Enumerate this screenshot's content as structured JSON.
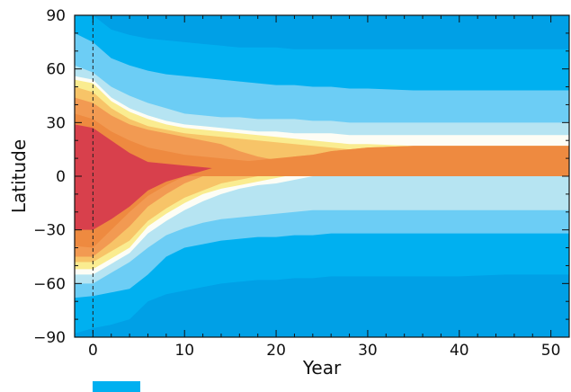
{
  "chart_data": {
    "type": "heatmap",
    "subtype": "filled-contour",
    "xlabel": "Year",
    "ylabel": "Latitude",
    "xlim": [
      -2,
      52
    ],
    "ylim": [
      -90,
      90
    ],
    "xticks": [
      0,
      10,
      20,
      30,
      40,
      50
    ],
    "xtick_labels": [
      "0",
      "10",
      "20",
      "30",
      "40",
      "50"
    ],
    "yticks": [
      90,
      60,
      30,
      0,
      -30,
      -60,
      -90
    ],
    "ytick_labels": [
      "90",
      "60",
      "30",
      "0",
      "−30",
      "−60",
      "−90"
    ],
    "reference_line": {
      "x": 0,
      "style": "dashed"
    },
    "grid": false,
    "colorbar_visible_swatch": "#00b0f0",
    "contour_levels": [
      {
        "name": "level-1",
        "color": "#00a0e6"
      },
      {
        "name": "level-2",
        "color": "#00b0f0"
      },
      {
        "name": "level-3",
        "color": "#6ccdf5"
      },
      {
        "name": "level-4",
        "color": "#b6e4f2"
      },
      {
        "name": "level-5",
        "color": "#fdfdf5"
      },
      {
        "name": "level-6",
        "color": "#faec90"
      },
      {
        "name": "level-7",
        "color": "#f7c468"
      },
      {
        "name": "level-8",
        "color": "#f29a52"
      },
      {
        "name": "level-9",
        "color": "#ee8a40"
      },
      {
        "name": "level-10",
        "color": "#d8404c"
      }
    ],
    "boundaries_north": {
      "x": [
        -2,
        0,
        2,
        4,
        6,
        8,
        10,
        12,
        14,
        16,
        18,
        20,
        22,
        24,
        26,
        28,
        30,
        35,
        40,
        45,
        50,
        52
      ],
      "b1": [
        90,
        90,
        90,
        90,
        90,
        90,
        90,
        90,
        90,
        90,
        90,
        90,
        90,
        90,
        90,
        90,
        90,
        90,
        90,
        90,
        90,
        90
      ],
      "b2": [
        90,
        90,
        82,
        79,
        77,
        76,
        75,
        74,
        73,
        72,
        72,
        72,
        71,
        71,
        71,
        71,
        71,
        71,
        71,
        71,
        71,
        71
      ],
      "b3": [
        80,
        75,
        66,
        62,
        59,
        57,
        56,
        55,
        54,
        53,
        52,
        51,
        51,
        50,
        50,
        49,
        49,
        48,
        48,
        48,
        48,
        48
      ],
      "b4": [
        62,
        58,
        50,
        45,
        41,
        38,
        35,
        34,
        33,
        33,
        32,
        32,
        32,
        31,
        31,
        30,
        30,
        30,
        30,
        30,
        30,
        30
      ],
      "b5": [
        56,
        54,
        44,
        38,
        34,
        31,
        29,
        28,
        27,
        26,
        25,
        25,
        24,
        24,
        24,
        23,
        23,
        23,
        23,
        23,
        23,
        23
      ],
      "b6": [
        54,
        52,
        42,
        36,
        32,
        29,
        27,
        26,
        25,
        24,
        23,
        22,
        21,
        20,
        19,
        18,
        18,
        17,
        17,
        17,
        17,
        17
      ],
      "b7": [
        50,
        47,
        38,
        32,
        28,
        26,
        24,
        23,
        22,
        21,
        20,
        19,
        18,
        17,
        16,
        15,
        14,
        12,
        12,
        12,
        13,
        12
      ],
      "b8": [
        44,
        41,
        34,
        29,
        26,
        24,
        22,
        20,
        18,
        14,
        11,
        9,
        8,
        7,
        6,
        5,
        5,
        4,
        3,
        3,
        5,
        6
      ],
      "b9": [
        35,
        32,
        25,
        20,
        16,
        14,
        12,
        11,
        10,
        9,
        8,
        7,
        6,
        5,
        4,
        3,
        3,
        2,
        1,
        1,
        2,
        2
      ],
      "b10": [
        29,
        27,
        20,
        13,
        8,
        7,
        6,
        5,
        4,
        3,
        2,
        1,
        0,
        0,
        0,
        0,
        0,
        0,
        0,
        0,
        0,
        0
      ]
    },
    "boundaries_south": {
      "x": [
        -2,
        0,
        2,
        4,
        6,
        8,
        10,
        12,
        14,
        16,
        18,
        20,
        22,
        24,
        26,
        28,
        30,
        35,
        40,
        45,
        50,
        52
      ],
      "b1": [
        -90,
        -90,
        -90,
        -90,
        -90,
        -90,
        -90,
        -90,
        -90,
        -90,
        -90,
        -90,
        -90,
        -90,
        -90,
        -90,
        -90,
        -90,
        -90,
        -90,
        -90,
        -90
      ],
      "b2": [
        -88,
        -85,
        -83,
        -80,
        -70,
        -66,
        -64,
        -62,
        -60,
        -59,
        -58,
        -58,
        -57,
        -57,
        -56,
        -56,
        -56,
        -56,
        -56,
        -55,
        -55,
        -55
      ],
      "b3": [
        -68,
        -67,
        -65,
        -63,
        -55,
        -45,
        -40,
        -38,
        -36,
        -35,
        -34,
        -34,
        -33,
        -33,
        -32,
        -32,
        -32,
        -32,
        -32,
        -32,
        -32,
        -32
      ],
      "b4": [
        -60,
        -60,
        -54,
        -48,
        -40,
        -33,
        -29,
        -26,
        -24,
        -23,
        -22,
        -21,
        -20,
        -19,
        -19,
        -19,
        -19,
        -19,
        -19,
        -19,
        -19,
        -19
      ],
      "b5": [
        -55,
        -55,
        -49,
        -43,
        -32,
        -25,
        -19,
        -14,
        -10,
        -7,
        -5,
        -4,
        -2,
        0,
        1,
        2,
        2,
        2,
        2,
        2,
        2,
        2
      ],
      "b6": [
        -52,
        -52,
        -46,
        -40,
        -28,
        -21,
        -15,
        -10,
        -7,
        -5,
        -3,
        -1,
        1,
        3,
        5,
        6,
        7,
        8,
        8,
        9,
        9,
        9
      ],
      "b7": [
        -48,
        -48,
        -42,
        -36,
        -25,
        -18,
        -12,
        -8,
        -4,
        -2,
        0,
        2,
        4,
        6,
        8,
        9,
        10,
        11,
        12,
        12,
        13,
        12
      ],
      "b8": [
        -45,
        -45,
        -37,
        -28,
        -17,
        -10,
        -4,
        0,
        3,
        5,
        7,
        9,
        11,
        12,
        14,
        15,
        16,
        17,
        17,
        17,
        17,
        17
      ],
      "b9": [
        -39,
        -40,
        -30,
        -20,
        -11,
        -5,
        0,
        3,
        6,
        8,
        9,
        10,
        11,
        12,
        14,
        15,
        16,
        17,
        17,
        17,
        17,
        17
      ],
      "b10": [
        -30,
        -30,
        -24,
        -17,
        -8,
        -3,
        0,
        0,
        0,
        0,
        0,
        0,
        0,
        0,
        0,
        0,
        0,
        0,
        0,
        0,
        0,
        0
      ]
    }
  }
}
